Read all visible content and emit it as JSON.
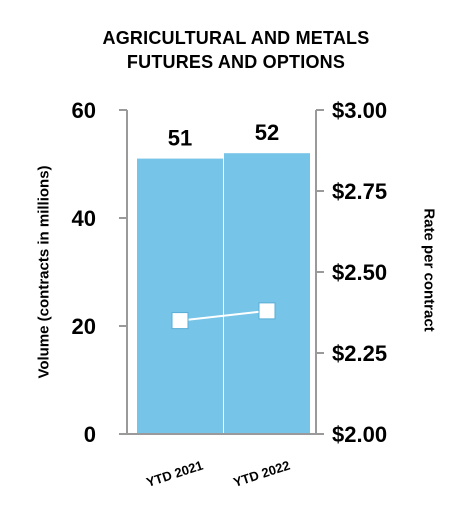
{
  "chart_data": {
    "type": "bar",
    "title": [
      "AGRICULTURAL AND METALS",
      "FUTURES AND OPTIONS"
    ],
    "categories": [
      "YTD 2021",
      "YTD 2022"
    ],
    "bar_series": {
      "values": [
        51,
        52
      ],
      "color": "#76c4e8"
    },
    "line_series": {
      "values": [
        2.35,
        2.38
      ],
      "color": "#ffffff"
    },
    "bar_labels": [
      "51",
      "52"
    ],
    "y_left": {
      "label": "Volume (contracts in millions)",
      "min": 0,
      "max": 60,
      "ticks": [
        "0",
        "20",
        "40",
        "60"
      ],
      "tick_values": [
        0,
        20,
        40,
        60
      ]
    },
    "y_right": {
      "label": "Rate per contract",
      "min": 2.0,
      "max": 3.0,
      "ticks": [
        "$2.00",
        "$2.25",
        "$2.50",
        "$2.75",
        "$3.00"
      ],
      "tick_values": [
        2.0,
        2.25,
        2.5,
        2.75,
        3.0
      ]
    },
    "axis_color": "#9a9a9a",
    "grid": false
  }
}
